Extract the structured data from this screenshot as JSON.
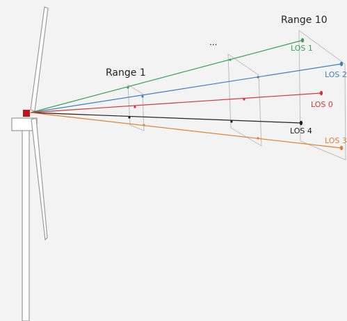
{
  "labels": {
    "range_first": "Range 1",
    "range_last": "Range 10",
    "ellipsis": "..."
  },
  "beams": [
    {
      "name": "LOS 1",
      "color": "#3aa055"
    },
    {
      "name": "LOS 2",
      "color": "#3f7fc0"
    },
    {
      "name": "LOS 0",
      "color": "#d0383b"
    },
    {
      "name": "LOS 4",
      "color": "#222222"
    },
    {
      "name": "LOS 3",
      "color": "#e07f2f"
    }
  ],
  "colors": {
    "turbine": "#ffffff",
    "turbine_outline": "#9a9a9a",
    "lidar": "#c0141c",
    "range_plane": "#bdbdbd"
  }
}
